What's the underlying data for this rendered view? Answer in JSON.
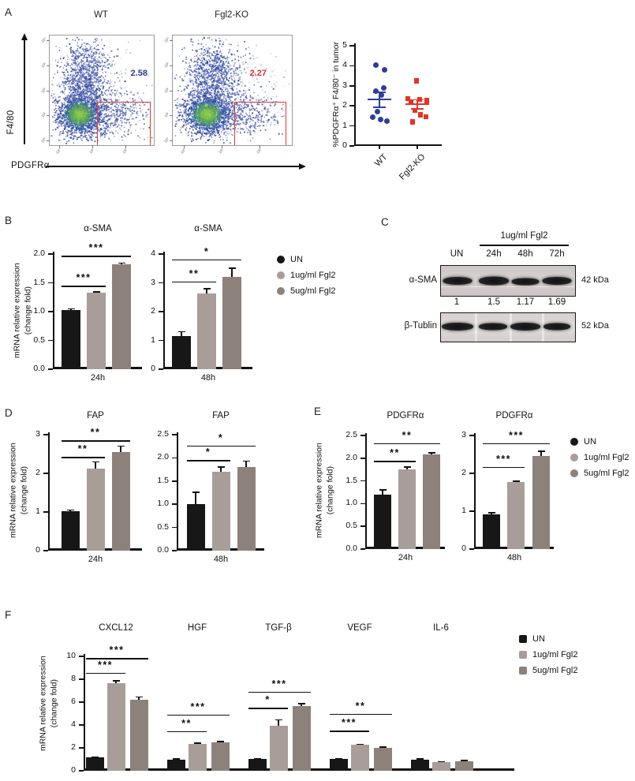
{
  "figure": {
    "panel_labels": {
      "A": "A",
      "B": "B",
      "C": "C",
      "D": "D",
      "E": "E",
      "F": "F"
    },
    "colors": {
      "series": [
        "#171717",
        "#a89d99",
        "#8d817b"
      ],
      "wt_dot": "#2e3f97",
      "ko_dot": "#e23328",
      "gate": "#e0392e",
      "navy_text": "#323a8f",
      "red_text": "#d4372d"
    },
    "legend": {
      "entries": [
        {
          "label": "UN",
          "color": "#171717"
        },
        {
          "label": "1ug/ml Fgl2",
          "color": "#a89d99"
        },
        {
          "label": "5ug/ml Fgl2",
          "color": "#8d817b"
        }
      ]
    },
    "panel_a": {
      "plots": [
        {
          "title": "WT",
          "gate_value": "2.58"
        },
        {
          "title": "Fgl2-KO",
          "gate_value": "2.27"
        }
      ],
      "x_axis": "PDGFRα",
      "y_axis": "F4/80",
      "y_decades": [
        "10⁴",
        "10³",
        "10²",
        "10¹",
        "10⁰"
      ],
      "x_decades": [
        "10⁰",
        "10¹",
        "10²"
      ]
    },
    "panel_c": {
      "header": "1ug/ml Fgl2",
      "lanes": [
        "UN",
        "24h",
        "48h",
        "72h"
      ],
      "rows": [
        {
          "label": "α-SMA",
          "kda": "42 kDa"
        },
        {
          "label": "β-Tublin",
          "kda": "52 kDa"
        }
      ],
      "quant": [
        "1",
        "1.5",
        "1.17",
        "1.69"
      ]
    },
    "y_axis_label_line1": "mRNA relative expression",
    "y_axis_label_line2": "(change fold)"
  },
  "chart_data": [
    {
      "id": "a_scatter",
      "type": "scatter",
      "ylabel": "%PDGFRα⁺ F4/80⁻ in tumor",
      "ylim": [
        0,
        5
      ],
      "yticks": [
        5,
        4,
        3,
        2,
        1,
        0
      ],
      "dec": 0,
      "groups": [
        {
          "label": "WT",
          "marker": "circle",
          "color": "#2e3f97",
          "values": [
            4.05,
            3.8,
            2.9,
            2.75,
            2.55,
            1.7,
            1.45,
            1.3,
            1.25
          ],
          "mean": 2.33,
          "sem_upper": 2.68,
          "sem_lower": 1.92
        },
        {
          "label": "Fgl2-KO",
          "marker": "square",
          "color": "#e23328",
          "values": [
            3.25,
            2.37,
            2.32,
            2.27,
            2.2,
            1.78,
            1.55,
            1.45,
            1.2
          ],
          "mean": 2.08,
          "sem_upper": 2.3,
          "sem_lower": 1.84
        }
      ]
    },
    {
      "id": "b_24h",
      "type": "bar",
      "title": "α-SMA",
      "xlabel": "24h",
      "ylim": [
        0,
        2
      ],
      "yticks": [
        2.0,
        1.5,
        1.0,
        0.5,
        0.0
      ],
      "dec": 1,
      "series": [
        {
          "name": "UN",
          "values": [
            1.03
          ],
          "errors": [
            0.02
          ]
        },
        {
          "name": "1ug/ml Fgl2",
          "values": [
            1.33
          ],
          "errors": [
            0.015
          ]
        },
        {
          "name": "5ug/ml Fgl2",
          "values": [
            1.82
          ],
          "errors": [
            0.02
          ]
        }
      ],
      "sig": [
        {
          "a": 0,
          "b": 1,
          "y": 1.45,
          "t": "***"
        },
        {
          "a": 0,
          "b": 2,
          "y": 1.97,
          "t": "***"
        }
      ]
    },
    {
      "id": "b_48h",
      "type": "bar",
      "title": "α-SMA",
      "xlabel": "48h",
      "ylim": [
        0,
        4
      ],
      "yticks": [
        4,
        3,
        2,
        1,
        0
      ],
      "dec": 0,
      "series": [
        {
          "name": "UN",
          "values": [
            1.15
          ],
          "errors": [
            0.15
          ]
        },
        {
          "name": "1ug/ml Fgl2",
          "values": [
            2.62
          ],
          "errors": [
            0.18
          ]
        },
        {
          "name": "5ug/ml Fgl2",
          "values": [
            3.2
          ],
          "errors": [
            0.3
          ]
        }
      ],
      "sig": [
        {
          "a": 0,
          "b": 1,
          "y": 3.05,
          "t": "**"
        },
        {
          "a": 0,
          "b": 2,
          "y": 3.82,
          "t": "*"
        }
      ]
    },
    {
      "id": "d_24h",
      "type": "bar",
      "title": "FAP",
      "xlabel": "24h",
      "ylim": [
        0,
        3
      ],
      "yticks": [
        3,
        2,
        1,
        0
      ],
      "dec": 0,
      "series": [
        {
          "name": "UN",
          "values": [
            1.03
          ],
          "errors": [
            0.02
          ]
        },
        {
          "name": "1ug/ml Fgl2",
          "values": [
            2.12
          ],
          "errors": [
            0.18
          ]
        },
        {
          "name": "5ug/ml Fgl2",
          "values": [
            2.55
          ],
          "errors": [
            0.15
          ]
        }
      ],
      "sig": [
        {
          "a": 0,
          "b": 1,
          "y": 2.42,
          "t": "**"
        },
        {
          "a": 0,
          "b": 2,
          "y": 2.85,
          "t": "**"
        }
      ]
    },
    {
      "id": "d_48h",
      "type": "bar",
      "title": "FAP",
      "xlabel": "48h",
      "ylim": [
        0,
        2.5
      ],
      "yticks": [
        2.5,
        2.0,
        1.5,
        1.0,
        0.5,
        0.0
      ],
      "dec": 1,
      "series": [
        {
          "name": "UN",
          "values": [
            1.0
          ],
          "errors": [
            0.26
          ]
        },
        {
          "name": "1ug/ml Fgl2",
          "values": [
            1.7
          ],
          "errors": [
            0.1
          ]
        },
        {
          "name": "5ug/ml Fgl2",
          "values": [
            1.8
          ],
          "errors": [
            0.13
          ]
        }
      ],
      "sig": [
        {
          "a": 0,
          "b": 1,
          "y": 1.95,
          "t": "*"
        },
        {
          "a": 0,
          "b": 2,
          "y": 2.27,
          "t": "*"
        }
      ]
    },
    {
      "id": "e_24h",
      "type": "bar",
      "title": "PDGFRα",
      "xlabel": "24h",
      "ylim": [
        0,
        2.5
      ],
      "yticks": [
        2.5,
        2.0,
        1.5,
        1.0,
        0.5,
        0.0
      ],
      "dec": 1,
      "series": [
        {
          "name": "UN",
          "values": [
            1.2
          ],
          "errors": [
            0.1
          ]
        },
        {
          "name": "1ug/ml Fgl2",
          "values": [
            1.75
          ],
          "errors": [
            0.06
          ]
        },
        {
          "name": "5ug/ml Fgl2",
          "values": [
            2.08
          ],
          "errors": [
            0.04
          ]
        }
      ],
      "sig": [
        {
          "a": 0,
          "b": 1,
          "y": 1.94,
          "t": "**"
        },
        {
          "a": 0,
          "b": 2,
          "y": 2.33,
          "t": "**"
        }
      ]
    },
    {
      "id": "e_48h",
      "type": "bar",
      "title": "PDGFRα",
      "xlabel": "48h",
      "ylim": [
        0,
        3
      ],
      "yticks": [
        3,
        2,
        1,
        0
      ],
      "dec": 0,
      "series": [
        {
          "name": "UN",
          "values": [
            0.92
          ],
          "errors": [
            0.04
          ]
        },
        {
          "name": "1ug/ml Fgl2",
          "values": [
            1.77
          ],
          "errors": [
            0.02
          ]
        },
        {
          "name": "5ug/ml Fgl2",
          "values": [
            2.45
          ],
          "errors": [
            0.13
          ]
        }
      ],
      "sig": [
        {
          "a": 0,
          "b": 1,
          "y": 2.17,
          "t": "***"
        },
        {
          "a": 0,
          "b": 2,
          "y": 2.8,
          "t": "***"
        }
      ]
    },
    {
      "id": "f_cytokines",
      "type": "bar",
      "ylim": [
        0,
        10
      ],
      "yticks": [
        10,
        8,
        6,
        4,
        2,
        0
      ],
      "dec": 0,
      "categories": [
        "CXCL12",
        "HGF",
        "TGF-β",
        "VEGF",
        "IL-6"
      ],
      "series": [
        {
          "name": "UN",
          "values": [
            1.18,
            1.0,
            1.03,
            1.05,
            1.0
          ],
          "errors": [
            0.04,
            0.03,
            0.03,
            0.03,
            0.03
          ]
        },
        {
          "name": "1ug/ml Fgl2",
          "values": [
            7.68,
            2.35,
            3.95,
            2.27,
            0.75
          ],
          "errors": [
            0.18,
            0.08,
            0.5,
            0.05,
            0.05
          ]
        },
        {
          "name": "5ug/ml Fgl2",
          "values": [
            6.2,
            2.48,
            5.65,
            2.0,
            0.85
          ],
          "errors": [
            0.25,
            0.07,
            0.2,
            0.05,
            0.05
          ]
        }
      ],
      "sig": [
        {
          "cat": 0,
          "a": 0,
          "b": 1,
          "y": 8.55,
          "t": "***"
        },
        {
          "cat": 0,
          "a": 0,
          "b": 2,
          "y": 9.85,
          "t": "***"
        },
        {
          "cat": 1,
          "a": 0,
          "b": 1,
          "y": 3.45,
          "t": "**"
        },
        {
          "cat": 1,
          "a": 0,
          "b": 2,
          "y": 4.9,
          "t": "***"
        },
        {
          "cat": 2,
          "a": 0,
          "b": 1,
          "y": 5.5,
          "t": "*"
        },
        {
          "cat": 2,
          "a": 0,
          "b": 2,
          "y": 6.9,
          "t": "***"
        },
        {
          "cat": 3,
          "a": 0,
          "b": 1,
          "y": 3.5,
          "t": "***"
        },
        {
          "cat": 3,
          "a": 0,
          "b": 2,
          "y": 5.0,
          "t": "**"
        }
      ]
    }
  ]
}
